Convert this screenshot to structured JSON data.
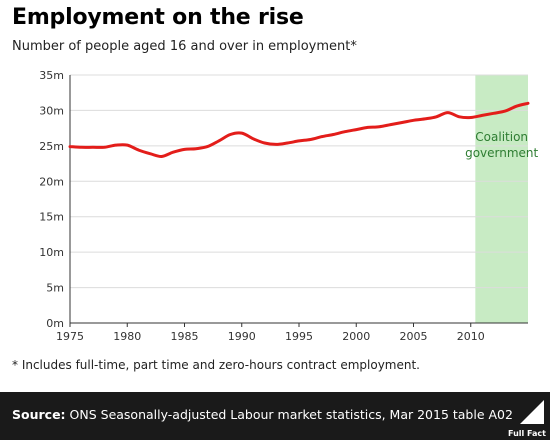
{
  "chart_data": {
    "type": "line",
    "title": "Employment on the rise",
    "subtitle": "Number of people aged 16 and over in employment*",
    "x_range": [
      1975,
      2015
    ],
    "ylim": [
      0,
      35
    ],
    "y_ticks": [
      0,
      5,
      10,
      15,
      20,
      25,
      30,
      35
    ],
    "y_tick_labels": [
      "0m",
      "5m",
      "10m",
      "15m",
      "20m",
      "25m",
      "30m",
      "35m"
    ],
    "x_ticks": [
      1975,
      1980,
      1985,
      1990,
      1995,
      2000,
      2005,
      2010
    ],
    "x_tick_labels": [
      "1975",
      "1980",
      "1985",
      "1990",
      "1995",
      "2000",
      "2005",
      "2010"
    ],
    "grid": "horizontal",
    "highlight": {
      "from": 2010.4,
      "to": 2015,
      "label_line1": "Coalition",
      "label_line2": "government",
      "color": "#c8ebc4",
      "text_color": "#2e7d32"
    },
    "series": [
      {
        "color": "#e31d1a",
        "x": [
          1975,
          1976,
          1977,
          1978,
          1979,
          1980,
          1981,
          1982,
          1983,
          1984,
          1985,
          1986,
          1987,
          1988,
          1989,
          1990,
          1991,
          1992,
          1993,
          1994,
          1995,
          1996,
          1997,
          1998,
          1999,
          2000,
          2001,
          2002,
          2003,
          2004,
          2005,
          2006,
          2007,
          2008,
          2009,
          2010,
          2011,
          2012,
          2013,
          2014,
          2015
        ],
        "values": [
          24.9,
          24.8,
          24.8,
          24.8,
          25.1,
          25.1,
          24.4,
          23.9,
          23.5,
          24.1,
          24.5,
          24.6,
          24.9,
          25.7,
          26.6,
          26.8,
          26.0,
          25.4,
          25.2,
          25.4,
          25.7,
          25.9,
          26.3,
          26.6,
          27.0,
          27.3,
          27.6,
          27.7,
          28.0,
          28.3,
          28.6,
          28.8,
          29.1,
          29.7,
          29.1,
          29.0,
          29.3,
          29.6,
          29.9,
          30.6,
          31.0
        ]
      }
    ]
  },
  "footnote": "* Includes full-time, part time and zero-hours contract employment.",
  "source": {
    "label": "Source:",
    "text": "ONS Seasonally-adjusted Labour market statistics, Mar 2015 table A02"
  },
  "logo": {
    "icon": "full-fact-logo-icon",
    "text": "Full Fact"
  }
}
